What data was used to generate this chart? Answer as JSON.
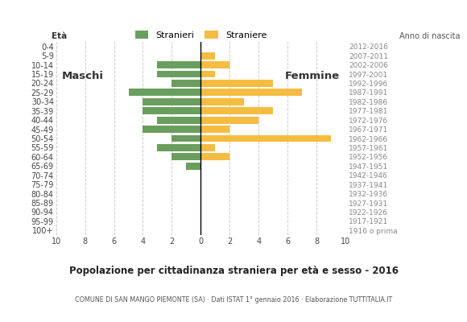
{
  "age_groups": [
    "100+",
    "95-99",
    "90-94",
    "85-89",
    "80-84",
    "75-79",
    "70-74",
    "65-69",
    "60-64",
    "55-59",
    "50-54",
    "45-49",
    "40-44",
    "35-39",
    "30-34",
    "25-29",
    "20-24",
    "15-19",
    "10-14",
    "5-9",
    "0-4"
  ],
  "birth_years": [
    "1916 o prima",
    "1917-1921",
    "1922-1926",
    "1927-1931",
    "1932-1936",
    "1937-1941",
    "1942-1946",
    "1947-1951",
    "1952-1956",
    "1957-1961",
    "1962-1966",
    "1967-1971",
    "1972-1976",
    "1977-1981",
    "1982-1986",
    "1987-1991",
    "1992-1996",
    "1997-2001",
    "2002-2006",
    "2007-2011",
    "2012-2016"
  ],
  "males": [
    0,
    0,
    0,
    0,
    0,
    0,
    0,
    1,
    2,
    3,
    2,
    4,
    3,
    4,
    4,
    5,
    2,
    3,
    3,
    0,
    0
  ],
  "females": [
    0,
    0,
    0,
    0,
    0,
    0,
    0,
    0,
    2,
    1,
    9,
    2,
    4,
    5,
    3,
    7,
    5,
    1,
    2,
    1,
    0
  ],
  "male_color": "#6a9e5e",
  "female_color": "#f5bc42",
  "title": "Popolazione per cittadinanza straniera per età e sesso - 2016",
  "subtitle": "COMUNE DI SAN MANGO PIEMONTE (SA) · Dati ISTAT 1° gennaio 2016 · Elaborazione TUTTITALIA.IT",
  "legend_male": "Stranieri",
  "legend_female": "Straniere",
  "label_maschi": "Maschi",
  "label_femmine": "Femmine",
  "eta_label": "Età",
  "anno_label": "Anno di nascita",
  "xlim": 10,
  "background_color": "#ffffff"
}
